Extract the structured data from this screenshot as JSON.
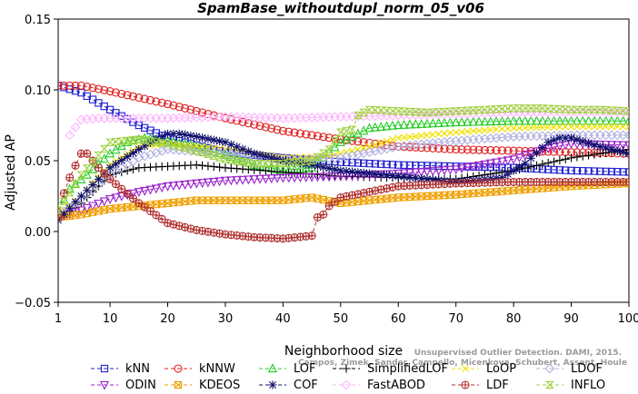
{
  "chart_data": {
    "type": "line",
    "title": "SpamBase_withoutdupl_norm_05_v06",
    "xlabel": "Neighborhood size",
    "ylabel": "Adjusted AP",
    "xlim": [
      1,
      100
    ],
    "ylim": [
      -0.05,
      0.15
    ],
    "xticks": [
      "1",
      "10",
      "20",
      "30",
      "40",
      "50",
      "60",
      "70",
      "80",
      "90",
      "100"
    ],
    "yticks": [
      "−0.05",
      "0.00",
      "0.05",
      "0.10",
      "0.15"
    ],
    "legend_position": "bottom",
    "watermark": [
      "Unsupervised Outlier Detection. DAMI, 2015.",
      "Campos, Zimek, Sander, Campello, Micenkova, Schubert, Assent, Houle"
    ],
    "series": [
      {
        "name": "kNN",
        "color": "#1f1fd0",
        "marker": "square",
        "x": [
          1,
          5,
          10,
          15,
          20,
          30,
          40,
          50,
          60,
          70,
          80,
          90,
          100
        ],
        "y": [
          0.103,
          0.098,
          0.086,
          0.075,
          0.066,
          0.056,
          0.052,
          0.049,
          0.047,
          0.046,
          0.045,
          0.043,
          0.042
        ]
      },
      {
        "name": "kNNW",
        "color": "#e02020",
        "marker": "circle",
        "x": [
          1,
          5,
          10,
          20,
          30,
          40,
          50,
          60,
          70,
          80,
          90,
          100
        ],
        "y": [
          0.103,
          0.103,
          0.099,
          0.09,
          0.08,
          0.071,
          0.065,
          0.06,
          0.058,
          0.057,
          0.056,
          0.055
        ]
      },
      {
        "name": "LOF",
        "color": "#22cc22",
        "marker": "triangle-up",
        "x": [
          1,
          3,
          6,
          10,
          13,
          16,
          20,
          25,
          30,
          35,
          40,
          45,
          50,
          55,
          60,
          65,
          70,
          80,
          90,
          100
        ],
        "y": [
          0.015,
          0.03,
          0.04,
          0.055,
          0.063,
          0.066,
          0.064,
          0.06,
          0.054,
          0.047,
          0.043,
          0.045,
          0.063,
          0.073,
          0.075,
          0.076,
          0.077,
          0.078,
          0.078,
          0.078
        ]
      },
      {
        "name": "SimplifiedLOF",
        "color": "#000000",
        "marker": "plus",
        "x": [
          1,
          5,
          10,
          15,
          20,
          25,
          30,
          40,
          50,
          60,
          70,
          80,
          90,
          100
        ],
        "y": [
          0.008,
          0.02,
          0.04,
          0.045,
          0.046,
          0.047,
          0.045,
          0.042,
          0.039,
          0.038,
          0.037,
          0.043,
          0.052,
          0.058
        ]
      },
      {
        "name": "LoOP",
        "color": "#f0e000",
        "marker": "cross",
        "x": [
          1,
          5,
          10,
          15,
          20,
          30,
          40,
          48,
          55,
          60,
          70,
          80,
          90,
          100
        ],
        "y": [
          0.012,
          0.025,
          0.047,
          0.06,
          0.062,
          0.058,
          0.052,
          0.053,
          0.06,
          0.066,
          0.07,
          0.073,
          0.074,
          0.074
        ]
      },
      {
        "name": "LDOF",
        "color": "#b0b0e0",
        "marker": "diamond",
        "x": [
          1,
          5,
          10,
          15,
          20,
          30,
          40,
          50,
          60,
          70,
          80,
          90,
          100
        ],
        "y": [
          0.011,
          0.023,
          0.04,
          0.052,
          0.058,
          0.055,
          0.05,
          0.052,
          0.06,
          0.064,
          0.067,
          0.068,
          0.068
        ]
      },
      {
        "name": "ODIN",
        "color": "#9922cc",
        "marker": "triangle-down",
        "x": [
          1,
          5,
          10,
          15,
          20,
          25,
          30,
          35,
          40,
          50,
          60,
          70,
          80,
          85,
          90,
          100
        ],
        "y": [
          0.01,
          0.015,
          0.023,
          0.028,
          0.032,
          0.034,
          0.036,
          0.037,
          0.038,
          0.039,
          0.041,
          0.044,
          0.051,
          0.058,
          0.062,
          0.061
        ]
      },
      {
        "name": "KDEOS",
        "color": "#f0a000",
        "marker": "square-x",
        "x": [
          1,
          5,
          10,
          15,
          20,
          25,
          30,
          40,
          45,
          50,
          60,
          70,
          80,
          90,
          100
        ],
        "y": [
          0.01,
          0.012,
          0.016,
          0.018,
          0.02,
          0.022,
          0.022,
          0.022,
          0.024,
          0.02,
          0.024,
          0.026,
          0.029,
          0.032,
          0.034
        ]
      },
      {
        "name": "COF",
        "color": "#10106e",
        "marker": "star",
        "x": [
          1,
          5,
          10,
          15,
          18,
          20,
          22,
          25,
          30,
          35,
          40,
          45,
          50,
          60,
          70,
          78,
          82,
          86,
          88,
          90,
          95,
          100
        ],
        "y": [
          0.008,
          0.025,
          0.045,
          0.058,
          0.065,
          0.069,
          0.069,
          0.067,
          0.063,
          0.055,
          0.05,
          0.047,
          0.043,
          0.039,
          0.035,
          0.038,
          0.048,
          0.063,
          0.066,
          0.066,
          0.06,
          0.055
        ]
      },
      {
        "name": "FastABOD",
        "color": "#ffb4ff",
        "marker": "diamond",
        "x": [
          3,
          5,
          8,
          10,
          15,
          20,
          30,
          40,
          50,
          60,
          70,
          80,
          90,
          100
        ],
        "y": [
          0.068,
          0.079,
          0.08,
          0.08,
          0.08,
          0.08,
          0.081,
          0.08,
          0.081,
          0.082,
          0.083,
          0.084,
          0.084,
          0.084
        ]
      },
      {
        "name": "LDF",
        "color": "#b03030",
        "marker": "circle-plus",
        "x": [
          1,
          2,
          3,
          5,
          6,
          8,
          10,
          12,
          15,
          20,
          25,
          30,
          35,
          40,
          45,
          46,
          47,
          48,
          50,
          55,
          60,
          70,
          80,
          90,
          100
        ],
        "y": [
          0.01,
          0.027,
          0.038,
          0.055,
          0.055,
          0.045,
          0.037,
          0.03,
          0.02,
          0.006,
          0.001,
          -0.002,
          -0.004,
          -0.005,
          -0.003,
          0.01,
          0.012,
          0.018,
          0.024,
          0.028,
          0.032,
          0.034,
          0.035,
          0.035,
          0.035
        ]
      },
      {
        "name": "INFLO",
        "color": "#a0d040",
        "marker": "hourglass",
        "x": [
          1,
          5,
          10,
          15,
          20,
          25,
          30,
          35,
          40,
          45,
          48,
          50,
          52,
          53,
          55,
          60,
          65,
          70,
          75,
          80,
          85,
          90,
          95,
          100
        ],
        "y": [
          0.015,
          0.04,
          0.063,
          0.065,
          0.062,
          0.057,
          0.051,
          0.048,
          0.048,
          0.05,
          0.058,
          0.07,
          0.072,
          0.082,
          0.086,
          0.085,
          0.084,
          0.085,
          0.086,
          0.087,
          0.087,
          0.086,
          0.086,
          0.085
        ]
      }
    ]
  }
}
